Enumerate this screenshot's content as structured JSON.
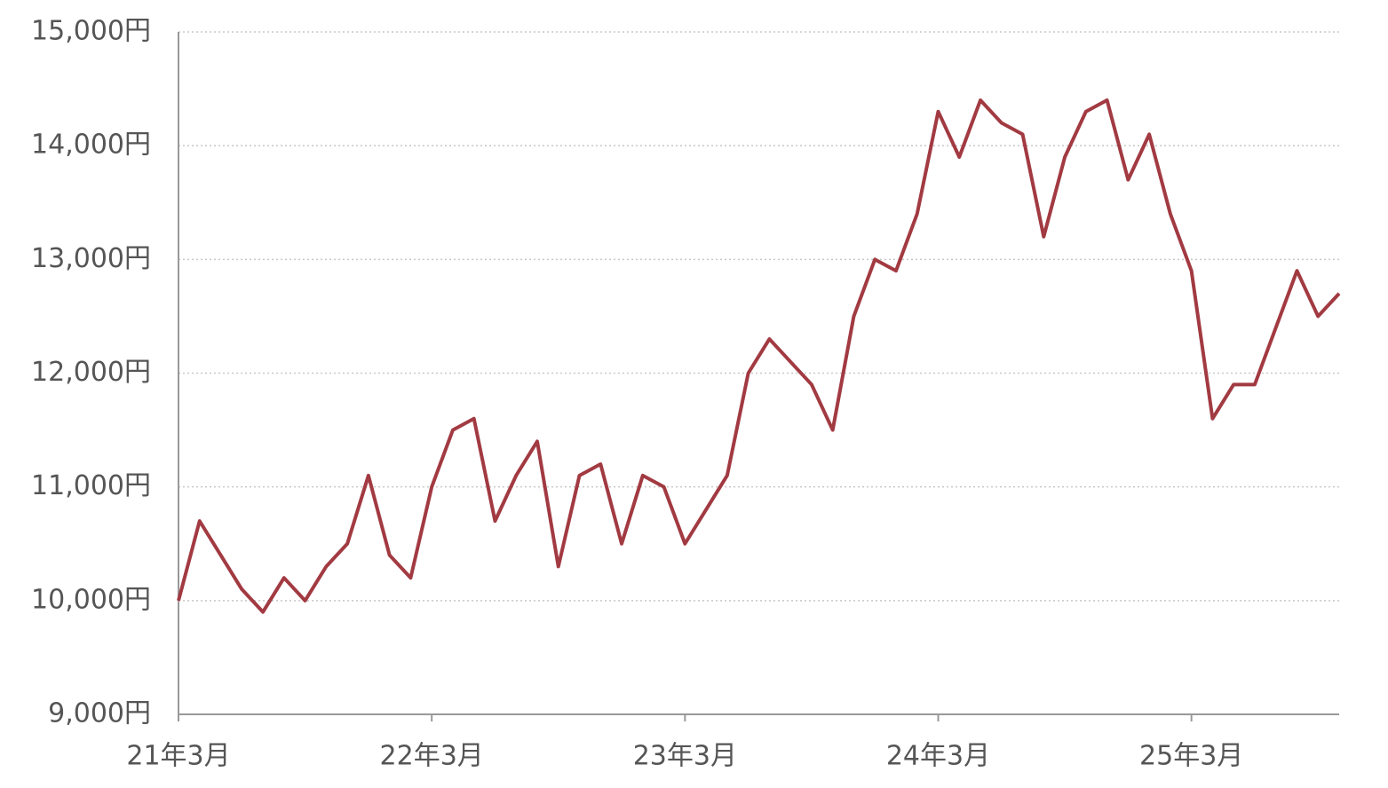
{
  "chart_data": {
    "type": "line",
    "x": [
      "2021-03",
      "2021-04",
      "2021-05",
      "2021-06",
      "2021-07",
      "2021-08",
      "2021-09",
      "2021-10",
      "2021-11",
      "2021-12",
      "2022-01",
      "2022-02",
      "2022-03",
      "2022-04",
      "2022-05",
      "2022-06",
      "2022-07",
      "2022-08",
      "2022-09",
      "2022-10",
      "2022-11",
      "2022-12",
      "2023-01",
      "2023-02",
      "2023-03",
      "2023-04",
      "2023-05",
      "2023-06",
      "2023-07",
      "2023-08",
      "2023-09",
      "2023-10",
      "2023-11",
      "2023-12",
      "2024-01",
      "2024-02",
      "2024-03",
      "2024-04",
      "2024-05",
      "2024-06",
      "2024-07",
      "2024-08",
      "2024-09",
      "2024-10",
      "2024-11",
      "2024-12",
      "2025-01",
      "2025-02",
      "2025-03",
      "2025-04",
      "2025-05",
      "2025-06",
      "2025-07",
      "2025-08",
      "2025-09",
      "2025-10"
    ],
    "series": [
      {
        "color": "#a23a42",
        "values": [
          10000,
          10700,
          10400,
          10100,
          9900,
          10200,
          10000,
          10300,
          10500,
          11100,
          10400,
          10200,
          11000,
          11500,
          11600,
          10700,
          11100,
          11400,
          10300,
          11100,
          11200,
          10500,
          11100,
          11000,
          10500,
          10800,
          11100,
          12000,
          12300,
          12100,
          11900,
          11500,
          12500,
          13000,
          12900,
          13400,
          14300,
          13900,
          14400,
          14200,
          14100,
          13200,
          13900,
          14300,
          14400,
          13700,
          14100,
          13400,
          12900,
          11600,
          11900,
          11900,
          12400,
          12900,
          12500,
          12700
        ]
      }
    ],
    "xlim": [
      "2021-03",
      "2025-10"
    ],
    "xticks": [
      {
        "value": "2021-03",
        "label": "21年3月"
      },
      {
        "value": "2022-03",
        "label": "22年3月"
      },
      {
        "value": "2023-03",
        "label": "23年3月"
      },
      {
        "value": "2024-03",
        "label": "24年3月"
      },
      {
        "value": "2025-03",
        "label": "25年3月"
      }
    ],
    "ylim": [
      9000,
      15000
    ],
    "yticks": [
      {
        "value": 9000,
        "label": "9,000円"
      },
      {
        "value": 10000,
        "label": "10,000円"
      },
      {
        "value": 11000,
        "label": "11,000円"
      },
      {
        "value": 12000,
        "label": "12,000円"
      },
      {
        "value": 13000,
        "label": "13,000円"
      },
      {
        "value": 14000,
        "label": "14,000円"
      },
      {
        "value": 15000,
        "label": "15,000円"
      }
    ],
    "grid": true
  }
}
